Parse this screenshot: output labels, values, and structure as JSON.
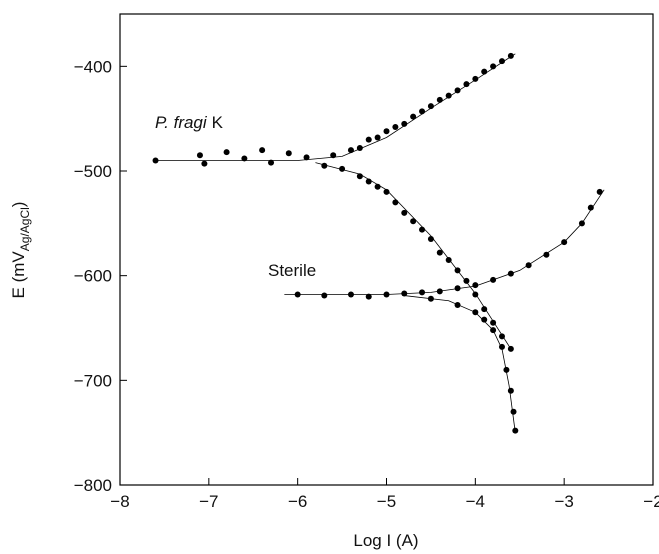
{
  "chart_data": {
    "type": "scatter",
    "xlabel": "Log I (A)",
    "ylabel": {
      "main": "E (mV",
      "sub": "Ag/AgCl",
      "end": ")"
    },
    "annotations": [
      {
        "italic": "P. fragi",
        "text": "K"
      },
      {
        "text": "Sterile"
      }
    ],
    "xlim": [
      -8,
      -2
    ],
    "xticks": [
      {
        "value": -8,
        "label": "−8"
      },
      {
        "value": -7,
        "label": "−7"
      },
      {
        "value": -6,
        "label": "−6"
      },
      {
        "value": -5,
        "label": "−5"
      },
      {
        "value": -4,
        "label": "−4"
      },
      {
        "value": -3,
        "label": "−3"
      },
      {
        "value": -2,
        "label": "−2"
      }
    ],
    "ylim": [
      -800,
      -350
    ],
    "yticks": [
      {
        "value": -800,
        "label": "−800"
      },
      {
        "value": -700,
        "label": "−700"
      },
      {
        "value": -600,
        "label": "−600"
      },
      {
        "value": -500,
        "label": "−500"
      },
      {
        "value": -400,
        "label": "−400"
      }
    ],
    "series": [
      {
        "mode": "markers",
        "color": "#000000",
        "x": [
          -7.6,
          -7.1,
          -7.05,
          -6.8,
          -6.6,
          -6.4,
          -6.3,
          -6.1,
          -5.9,
          -5.7,
          -5.6,
          -5.5,
          -5.4,
          -5.3,
          -5.2,
          -5.1,
          -5.0,
          -4.9,
          -4.8,
          -4.7,
          -4.6,
          -4.5,
          -4.4,
          -4.3,
          -4.2,
          -4.1,
          -4.0,
          -3.9,
          -3.8,
          -3.7,
          -3.6,
          -5.3,
          -5.2,
          -5.1,
          -5.0,
          -4.9,
          -4.8,
          -4.7,
          -4.6,
          -4.5,
          -4.4,
          -4.3,
          -4.2,
          -4.1,
          -4.0,
          -3.9,
          -3.8,
          -3.7,
          -3.6
        ],
        "values": [
          -490,
          -485,
          -493,
          -482,
          -488,
          -480,
          -492,
          -483,
          -487,
          -495,
          -485,
          -498,
          -480,
          -478,
          -470,
          -468,
          -462,
          -458,
          -455,
          -448,
          -443,
          -438,
          -432,
          -428,
          -423,
          -417,
          -412,
          -405,
          -400,
          -395,
          -390,
          -505,
          -510,
          -515,
          -520,
          -530,
          -540,
          -548,
          -556,
          -565,
          -578,
          -585,
          -595,
          -605,
          -618,
          -632,
          -645,
          -658,
          -670
        ]
      },
      {
        "mode": "markers",
        "color": "#000000",
        "x": [
          -6.0,
          -5.7,
          -5.4,
          -5.2,
          -5.0,
          -4.8,
          -4.6,
          -4.4,
          -4.2,
          -4.0,
          -3.8,
          -3.6,
          -3.4,
          -3.2,
          -3.0,
          -2.8,
          -2.7,
          -2.6,
          -4.5,
          -4.2,
          -4.0,
          -3.9,
          -3.8,
          -3.7,
          -3.65,
          -3.6,
          -3.57,
          -3.55
        ],
        "values": [
          -618,
          -619,
          -618,
          -620,
          -618,
          -617,
          -616,
          -615,
          -612,
          -609,
          -604,
          -598,
          -590,
          -580,
          -568,
          -550,
          -535,
          -520,
          -622,
          -628,
          -635,
          -642,
          -652,
          -668,
          -690,
          -710,
          -730,
          -748
        ]
      },
      {
        "mode": "line",
        "color": "#000000",
        "x": [
          -7.6,
          -6.0,
          -5.5,
          -5.0,
          -4.5,
          -4.0,
          -3.55
        ],
        "values": [
          -490,
          -490,
          -486,
          -468,
          -440,
          -413,
          -388
        ]
      },
      {
        "mode": "line",
        "color": "#000000",
        "x": [
          -5.8,
          -5.3,
          -5.0,
          -4.5,
          -4.0,
          -3.6
        ],
        "values": [
          -492,
          -503,
          -518,
          -562,
          -617,
          -670
        ]
      },
      {
        "mode": "line",
        "color": "#000000",
        "x": [
          -6.15,
          -5.0,
          -4.5,
          -4.0,
          -3.5,
          -3.0,
          -2.8,
          -2.55
        ],
        "values": [
          -618,
          -618,
          -616,
          -610,
          -595,
          -568,
          -550,
          -518
        ]
      },
      {
        "mode": "line",
        "color": "#000000",
        "x": [
          -4.8,
          -4.3,
          -4.0,
          -3.8,
          -3.7,
          -3.62,
          -3.55
        ],
        "values": [
          -619,
          -624,
          -635,
          -652,
          -670,
          -705,
          -750
        ]
      }
    ]
  }
}
